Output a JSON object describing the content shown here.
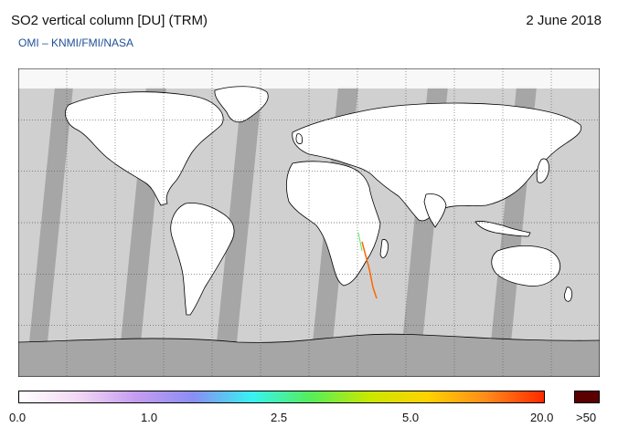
{
  "header": {
    "title": "SO2 vertical column [DU] (TRM)",
    "date": "2 June 2018",
    "subtitle": "OMI  –  KNMI/FMI/NASA"
  },
  "map": {
    "lon_ticks": [
      "-150",
      "-120",
      "-90",
      "-60",
      "-30",
      "0",
      "30",
      "60",
      "90",
      "120",
      "150"
    ],
    "lat_ticks": [
      "60",
      "30",
      "0",
      "-30",
      "-60"
    ],
    "ocean_color": "#d0d0d0",
    "land_color": "#ffffff",
    "swath_gap_color": "#a6a6a6",
    "grid_style": "dotted"
  },
  "colorbar": {
    "labels": [
      "0.0",
      "1.0",
      "2.5",
      "5.0",
      "20.0"
    ],
    "over_label": ">50",
    "stops": [
      "#ffffff",
      "#f3d8f5",
      "#c69cf0",
      "#8a8ef4",
      "#37f2f2",
      "#55ee5a",
      "#c9e800",
      "#ffd200",
      "#ff8c1a",
      "#ff2a00"
    ],
    "over_color": "#5a0000"
  }
}
